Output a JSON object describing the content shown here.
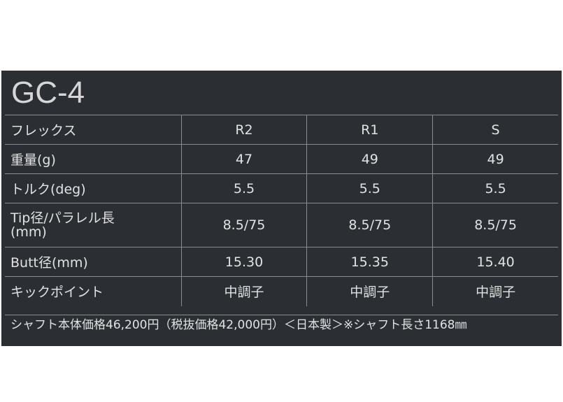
{
  "title": "GC-4",
  "rows": [
    {
      "label": "フレックス",
      "values": [
        "R2",
        "R1",
        "S"
      ]
    },
    {
      "label": "重量(g)",
      "values": [
        "47",
        "49",
        "49"
      ]
    },
    {
      "label": "トルク(deg)",
      "values": [
        "5.5",
        "5.5",
        "5.5"
      ]
    },
    {
      "label": "Tip径/パラレル長\n(mm)",
      "label_line1": "Tip径/パラレル長",
      "label_line2": "(mm)",
      "values": [
        "8.5/75",
        "8.5/75",
        "8.5/75"
      ]
    },
    {
      "label": "Butt径(mm)",
      "values": [
        "15.30",
        "15.35",
        "15.40"
      ]
    },
    {
      "label": "キックポイント",
      "values": [
        "中調子",
        "中調子",
        "中調子"
      ]
    }
  ],
  "footer": "シャフト本体価格46,200円（税抜価格42,000円）＜日本製＞※シャフト長さ1168㎜"
}
